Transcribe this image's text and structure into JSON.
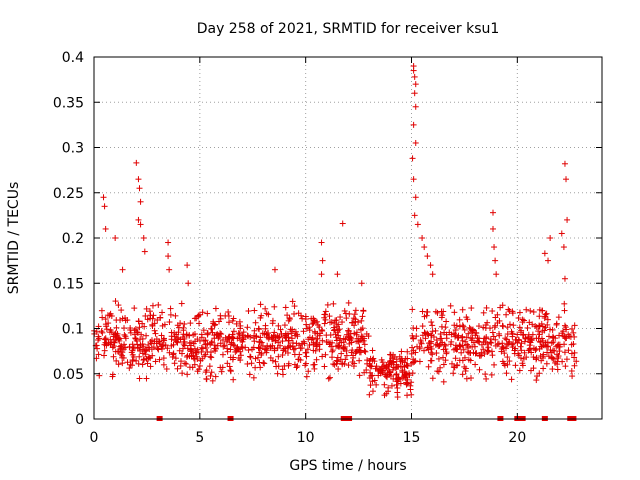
{
  "chart_data": {
    "type": "scatter",
    "title": "Day 258 of 2021, SRMTID for receiver ksu1",
    "xlabel": "GPS time / hours",
    "ylabel": "SRMTID / TECUs",
    "xlim": [
      0,
      24
    ],
    "ylim": [
      0,
      0.4
    ],
    "xticks": [
      0,
      5,
      10,
      15,
      20
    ],
    "xtick_labels": [
      "0",
      "5",
      "10",
      "15",
      "20"
    ],
    "yticks": [
      0,
      0.05,
      0.1,
      0.15,
      0.2,
      0.25,
      0.3,
      0.35,
      0.4
    ],
    "ytick_labels": [
      "0",
      "0.05",
      "0.1",
      "0.15",
      "0.2",
      "0.25",
      "0.3",
      "0.35",
      "0.4"
    ],
    "grid": true,
    "marker": "+",
    "color": "#e00000",
    "background_band": {
      "start": 0.0,
      "end": 22.8,
      "base": [
        0.04,
        0.13
      ]
    },
    "peaks": [
      {
        "x": 0.45,
        "y": 0.245
      },
      {
        "x": 0.55,
        "y": 0.21
      },
      {
        "x": 0.5,
        "y": 0.235
      },
      {
        "x": 1.0,
        "y": 0.2
      },
      {
        "x": 1.35,
        "y": 0.165
      },
      {
        "x": 2.0,
        "y": 0.283
      },
      {
        "x": 2.1,
        "y": 0.265
      },
      {
        "x": 2.15,
        "y": 0.255
      },
      {
        "x": 2.2,
        "y": 0.24
      },
      {
        "x": 2.1,
        "y": 0.22
      },
      {
        "x": 2.2,
        "y": 0.215
      },
      {
        "x": 2.35,
        "y": 0.2
      },
      {
        "x": 2.4,
        "y": 0.185
      },
      {
        "x": 3.5,
        "y": 0.195
      },
      {
        "x": 3.5,
        "y": 0.18
      },
      {
        "x": 3.55,
        "y": 0.165
      },
      {
        "x": 4.4,
        "y": 0.17
      },
      {
        "x": 4.45,
        "y": 0.15
      },
      {
        "x": 8.55,
        "y": 0.165
      },
      {
        "x": 10.75,
        "y": 0.195
      },
      {
        "x": 10.8,
        "y": 0.175
      },
      {
        "x": 10.75,
        "y": 0.16
      },
      {
        "x": 11.5,
        "y": 0.16
      },
      {
        "x": 11.75,
        "y": 0.216
      },
      {
        "x": 12.65,
        "y": 0.15
      },
      {
        "x": 15.1,
        "y": 0.39
      },
      {
        "x": 15.1,
        "y": 0.385
      },
      {
        "x": 15.15,
        "y": 0.378
      },
      {
        "x": 15.2,
        "y": 0.37
      },
      {
        "x": 15.15,
        "y": 0.36
      },
      {
        "x": 15.2,
        "y": 0.345
      },
      {
        "x": 15.1,
        "y": 0.325
      },
      {
        "x": 15.2,
        "y": 0.305
      },
      {
        "x": 15.05,
        "y": 0.288
      },
      {
        "x": 15.1,
        "y": 0.265
      },
      {
        "x": 15.2,
        "y": 0.245
      },
      {
        "x": 15.15,
        "y": 0.225
      },
      {
        "x": 15.3,
        "y": 0.215
      },
      {
        "x": 15.5,
        "y": 0.2
      },
      {
        "x": 15.6,
        "y": 0.19
      },
      {
        "x": 15.75,
        "y": 0.18
      },
      {
        "x": 15.9,
        "y": 0.17
      },
      {
        "x": 16.0,
        "y": 0.16
      },
      {
        "x": 18.85,
        "y": 0.228
      },
      {
        "x": 18.85,
        "y": 0.21
      },
      {
        "x": 18.9,
        "y": 0.19
      },
      {
        "x": 18.95,
        "y": 0.175
      },
      {
        "x": 19.0,
        "y": 0.16
      },
      {
        "x": 21.3,
        "y": 0.183
      },
      {
        "x": 21.55,
        "y": 0.2
      },
      {
        "x": 21.45,
        "y": 0.175
      },
      {
        "x": 22.1,
        "y": 0.205
      },
      {
        "x": 22.25,
        "y": 0.282
      },
      {
        "x": 22.3,
        "y": 0.265
      },
      {
        "x": 22.35,
        "y": 0.22
      },
      {
        "x": 22.2,
        "y": 0.19
      },
      {
        "x": 22.25,
        "y": 0.155
      }
    ],
    "low_segments": [
      {
        "start": 13.0,
        "end": 15.0,
        "range": [
          0.025,
          0.08
        ]
      }
    ],
    "zero_markers": [
      3.1,
      6.45,
      11.8,
      12.05,
      19.2,
      20.0,
      20.25,
      21.3,
      22.5,
      22.65
    ]
  }
}
